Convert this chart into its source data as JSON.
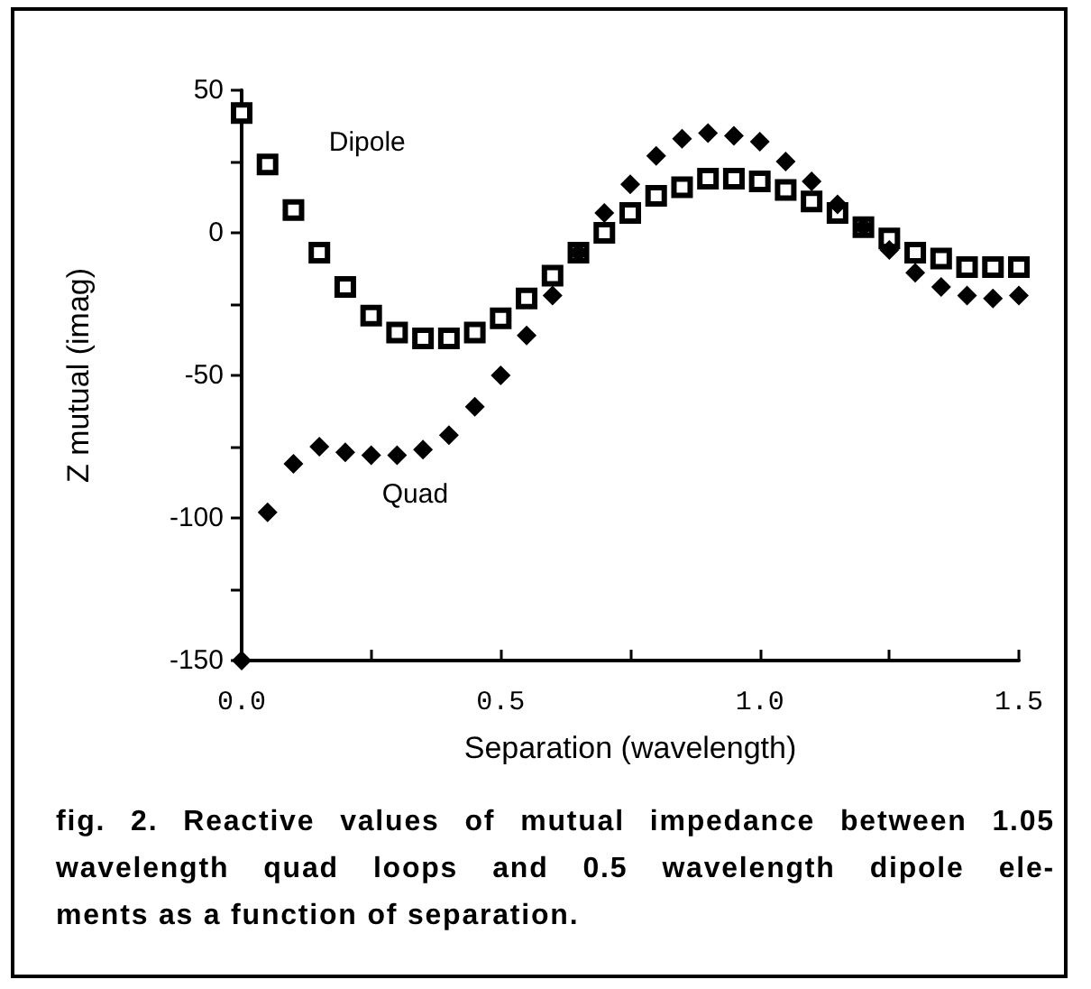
{
  "chart_data": {
    "type": "scatter",
    "xlabel": "Separation (wavelength)",
    "ylabel": "Z mutual (imag)",
    "x": [
      0,
      0.05,
      0.1,
      0.15,
      0.2,
      0.25,
      0.3,
      0.35,
      0.4,
      0.45,
      0.5,
      0.55,
      0.6,
      0.65,
      0.7,
      0.75,
      0.8,
      0.85,
      0.9,
      0.95,
      1.0,
      1.05,
      1.1,
      1.15,
      1.2,
      1.25,
      1.3,
      1.35,
      1.4,
      1.45,
      1.5
    ],
    "series": [
      {
        "name": "Dipole",
        "color": "#000000",
        "marker": "square",
        "values": [
          42,
          24,
          8,
          -7,
          -19,
          -29,
          -35,
          -37,
          -37,
          -35,
          -30,
          -23,
          -15,
          -7,
          0,
          7,
          13,
          16,
          19,
          19,
          18,
          15,
          11,
          7,
          2,
          -2,
          -7,
          -9,
          -12,
          -12,
          -12
        ]
      },
      {
        "name": "Quad",
        "color": "#000000",
        "marker": "diamond",
        "values": [
          -150,
          -98,
          -81,
          -75,
          -77,
          -78,
          -78,
          -76,
          -71,
          -61,
          -50,
          -36,
          -22,
          -7,
          7,
          17,
          27,
          33,
          35,
          34,
          32,
          25,
          18,
          10,
          2,
          -6,
          -14,
          -19,
          -22,
          -23,
          -22
        ]
      }
    ],
    "xlim": [
      0,
      1.5
    ],
    "xticks": [
      {
        "value": 0,
        "label": "0.0"
      },
      {
        "value": 0.25,
        "label": null
      },
      {
        "value": 0.5,
        "label": "0.5"
      },
      {
        "value": 0.75,
        "label": null
      },
      {
        "value": 1.0,
        "label": "1.0"
      },
      {
        "value": 1.25,
        "label": null
      },
      {
        "value": 1.5,
        "label": "1.5"
      }
    ],
    "ylim": [
      -150,
      50
    ],
    "yticks": [
      -150,
      {
        "value": -125,
        "label": null
      },
      -100,
      {
        "value": -75,
        "label": null
      },
      -50,
      {
        "value": -25,
        "label": null
      },
      0,
      {
        "value": 25,
        "label": null
      },
      50
    ],
    "grid": false,
    "legend": false,
    "annotations": [
      "fig. 2. Reactive values of mutual impedance between 1.05\nwavelength quad loops and 0.5 wavelength dipole ele-\nments as a function of separation."
    ]
  }
}
